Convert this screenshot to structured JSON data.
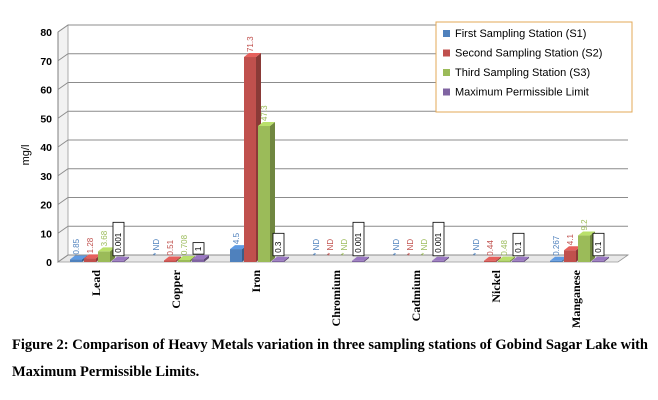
{
  "chart_data": {
    "type": "bar",
    "ylabel": "mg/l",
    "ylim": [
      0,
      80
    ],
    "yticks": [
      0,
      10,
      20,
      30,
      40,
      50,
      60,
      70,
      80
    ],
    "grid": true,
    "legend_position": "top-right",
    "categories": [
      "Lead",
      "Copper",
      "Iron",
      "Chromium",
      "Cadmium",
      "Nickel",
      "Manganese"
    ],
    "series": [
      {
        "name": "First Sampling Station (S1)",
        "color": "#4f81bd",
        "values": [
          0.85,
          null,
          4.5,
          null,
          null,
          null,
          0.267
        ],
        "labels": [
          "0.85",
          "ND",
          "4.5",
          "ND",
          "ND",
          "ND",
          "0.267"
        ]
      },
      {
        "name": "Second Sampling Station (S2)",
        "color": "#c0504d",
        "values": [
          1.28,
          0.51,
          71.3,
          null,
          null,
          0.44,
          4.1
        ],
        "labels": [
          "1.28",
          "0.51",
          "71.3",
          "ND",
          "ND",
          "0.44",
          "4.1"
        ]
      },
      {
        "name": "Third Sampling Station (S3)",
        "color": "#9bbb59",
        "values": [
          3.68,
          0.708,
          47.3,
          null,
          null,
          0.48,
          9.2
        ],
        "labels": [
          "3.68",
          "0.708",
          "47.3",
          "ND",
          "ND",
          "0.48",
          "9.2"
        ]
      },
      {
        "name": "Maximum Permissible Limit",
        "color": "#8064a2",
        "values": [
          0.001,
          1,
          0.3,
          0.001,
          0.001,
          0.1,
          0.1
        ],
        "labels": [
          "0.001",
          "1",
          "0.3",
          "0.001",
          "0.001",
          "0.1",
          "0.1"
        ]
      }
    ]
  },
  "caption": "Figure 2: Comparison of Heavy Metals variation in three sampling stations of Gobind Sagar Lake with Maximum Permissible Limits."
}
